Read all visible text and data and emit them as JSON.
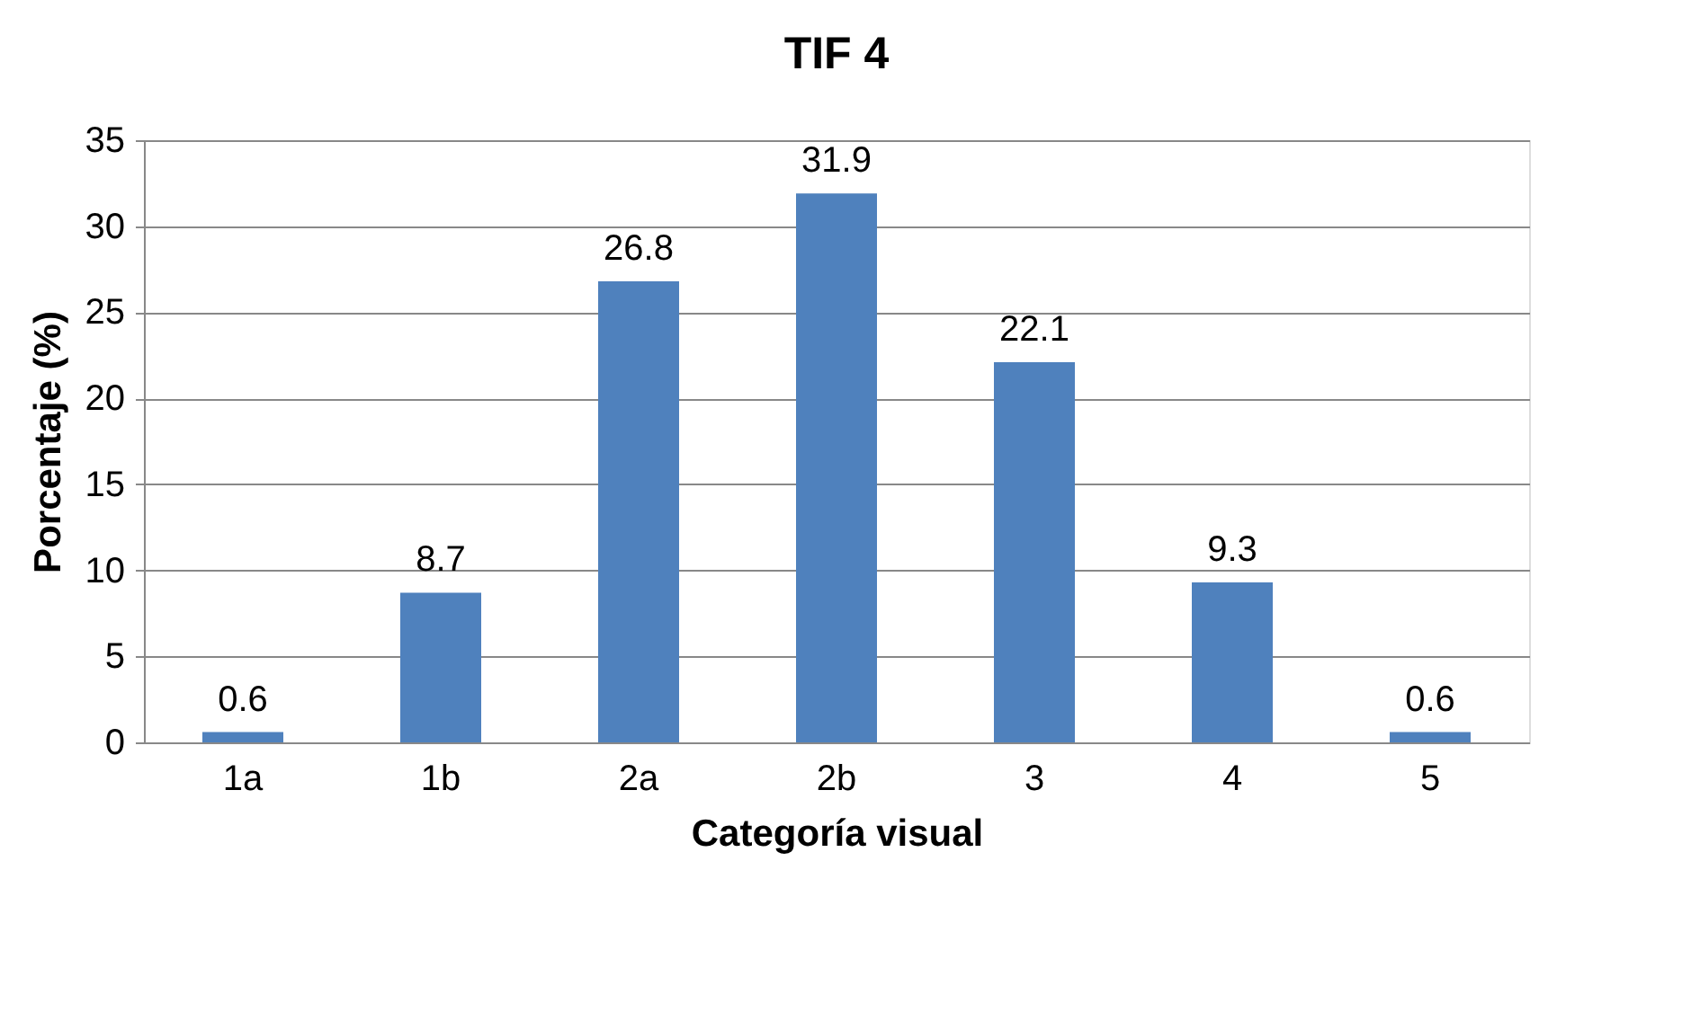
{
  "chart_data": {
    "type": "bar",
    "title": "TIF 4",
    "xlabel": "Categoría visual",
    "ylabel": "Porcentaje (%)",
    "categories": [
      "1a",
      "1b",
      "2a",
      "2b",
      "3",
      "4",
      "5"
    ],
    "values": [
      0.6,
      8.7,
      26.8,
      31.9,
      22.1,
      9.3,
      0.6
    ],
    "color": "#4f81bd",
    "ylim": [
      0,
      35
    ],
    "yticks": [
      0,
      5,
      10,
      15,
      20,
      25,
      30,
      35
    ],
    "grid": "y",
    "data_labels": true
  }
}
